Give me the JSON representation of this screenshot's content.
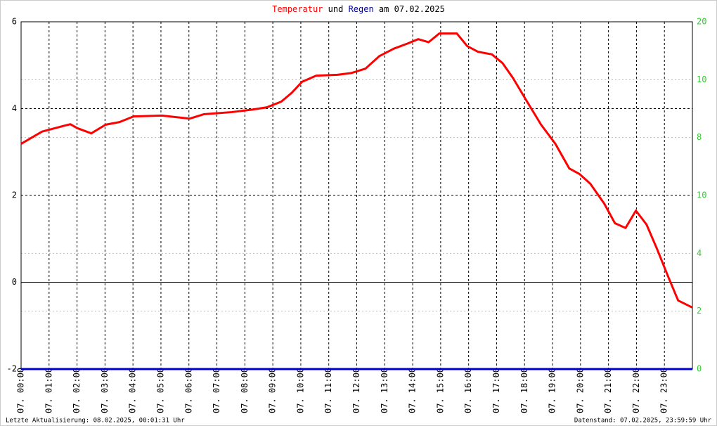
{
  "chart_data": {
    "type": "line",
    "title_segments": [
      {
        "text": "Temperatur",
        "color": "#ff0000"
      },
      {
        "text": "und",
        "color": "#000000"
      },
      {
        "text": "Regen",
        "color": "#000099"
      },
      {
        "text": "am 07.02.2025",
        "color": "#000000"
      }
    ],
    "footer_left": "Letzte Aktualisierung: 08.02.2025, 00:01:31 Uhr",
    "footer_right": "Datenstand: 07.02.2025, 23:59:59 Uhr",
    "xlim": [
      0,
      24
    ],
    "xticks": [
      {
        "value": 0,
        "label": "07. 00:00"
      },
      {
        "value": 1,
        "label": "07. 01:00"
      },
      {
        "value": 2,
        "label": "07. 02:00"
      },
      {
        "value": 3,
        "label": "07. 03:00"
      },
      {
        "value": 4,
        "label": "07. 04:00"
      },
      {
        "value": 5,
        "label": "07. 05:00"
      },
      {
        "value": 6,
        "label": "07. 06:00"
      },
      {
        "value": 7,
        "label": "07. 07:00"
      },
      {
        "value": 8,
        "label": "07. 08:00"
      },
      {
        "value": 9,
        "label": "07. 09:00"
      },
      {
        "value": 10,
        "label": "07. 10:00"
      },
      {
        "value": 11,
        "label": "07. 11:00"
      },
      {
        "value": 12,
        "label": "07. 12:00"
      },
      {
        "value": 13,
        "label": "07. 13:00"
      },
      {
        "value": 14,
        "label": "07. 14:00"
      },
      {
        "value": 15,
        "label": "07. 15:00"
      },
      {
        "value": 16,
        "label": "07. 16:00"
      },
      {
        "value": 17,
        "label": "07. 17:00"
      },
      {
        "value": 18,
        "label": "07. 18:00"
      },
      {
        "value": 19,
        "label": "07. 19:00"
      },
      {
        "value": 20,
        "label": "07. 20:00"
      },
      {
        "value": 21,
        "label": "07. 21:00"
      },
      {
        "value": 22,
        "label": "07. 22:00"
      },
      {
        "value": 23,
        "label": "07. 23:00"
      }
    ],
    "ylim": [
      -2,
      6
    ],
    "yticks": [
      -2,
      0,
      2,
      4,
      6
    ],
    "y2lim": [
      0,
      12
    ],
    "y2ticks": [
      2,
      4,
      8,
      10
    ],
    "y3lim": [
      0,
      20
    ],
    "y3ticks": [
      0,
      10,
      20
    ],
    "right_tick_color": "#33cc33",
    "series": [
      {
        "name": "Temperatur",
        "color": "#ff0000",
        "x": [
          0,
          0.75,
          1.51,
          1.76,
          2.01,
          2.51,
          3.02,
          3.52,
          4.02,
          5.03,
          6.03,
          6.53,
          7.54,
          8.29,
          8.79,
          9.3,
          9.67,
          10.05,
          10.55,
          11.31,
          11.81,
          12.31,
          12.81,
          13.32,
          13.82,
          14.2,
          14.57,
          14.95,
          15.58,
          15.95,
          16.33,
          16.83,
          17.21,
          17.59,
          18.09,
          18.59,
          19.1,
          19.6,
          19.97,
          20.35,
          20.85,
          21.23,
          21.61,
          21.98,
          22.36,
          22.74,
          23.12,
          23.49,
          23.99
        ],
        "values": [
          3.19,
          3.47,
          3.6,
          3.64,
          3.55,
          3.43,
          3.63,
          3.69,
          3.82,
          3.84,
          3.77,
          3.87,
          3.92,
          3.98,
          4.03,
          4.16,
          4.36,
          4.62,
          4.76,
          4.78,
          4.82,
          4.92,
          5.21,
          5.38,
          5.5,
          5.6,
          5.53,
          5.73,
          5.73,
          5.44,
          5.31,
          5.25,
          5.05,
          4.7,
          4.16,
          3.63,
          3.19,
          2.62,
          2.49,
          2.27,
          1.81,
          1.36,
          1.25,
          1.65,
          1.33,
          0.76,
          0.15,
          -0.42,
          -0.58
        ]
      },
      {
        "name": "Regen",
        "color": "#0000cc",
        "axis": "y2",
        "x": [
          0,
          24
        ],
        "values": [
          0,
          0
        ]
      }
    ]
  }
}
